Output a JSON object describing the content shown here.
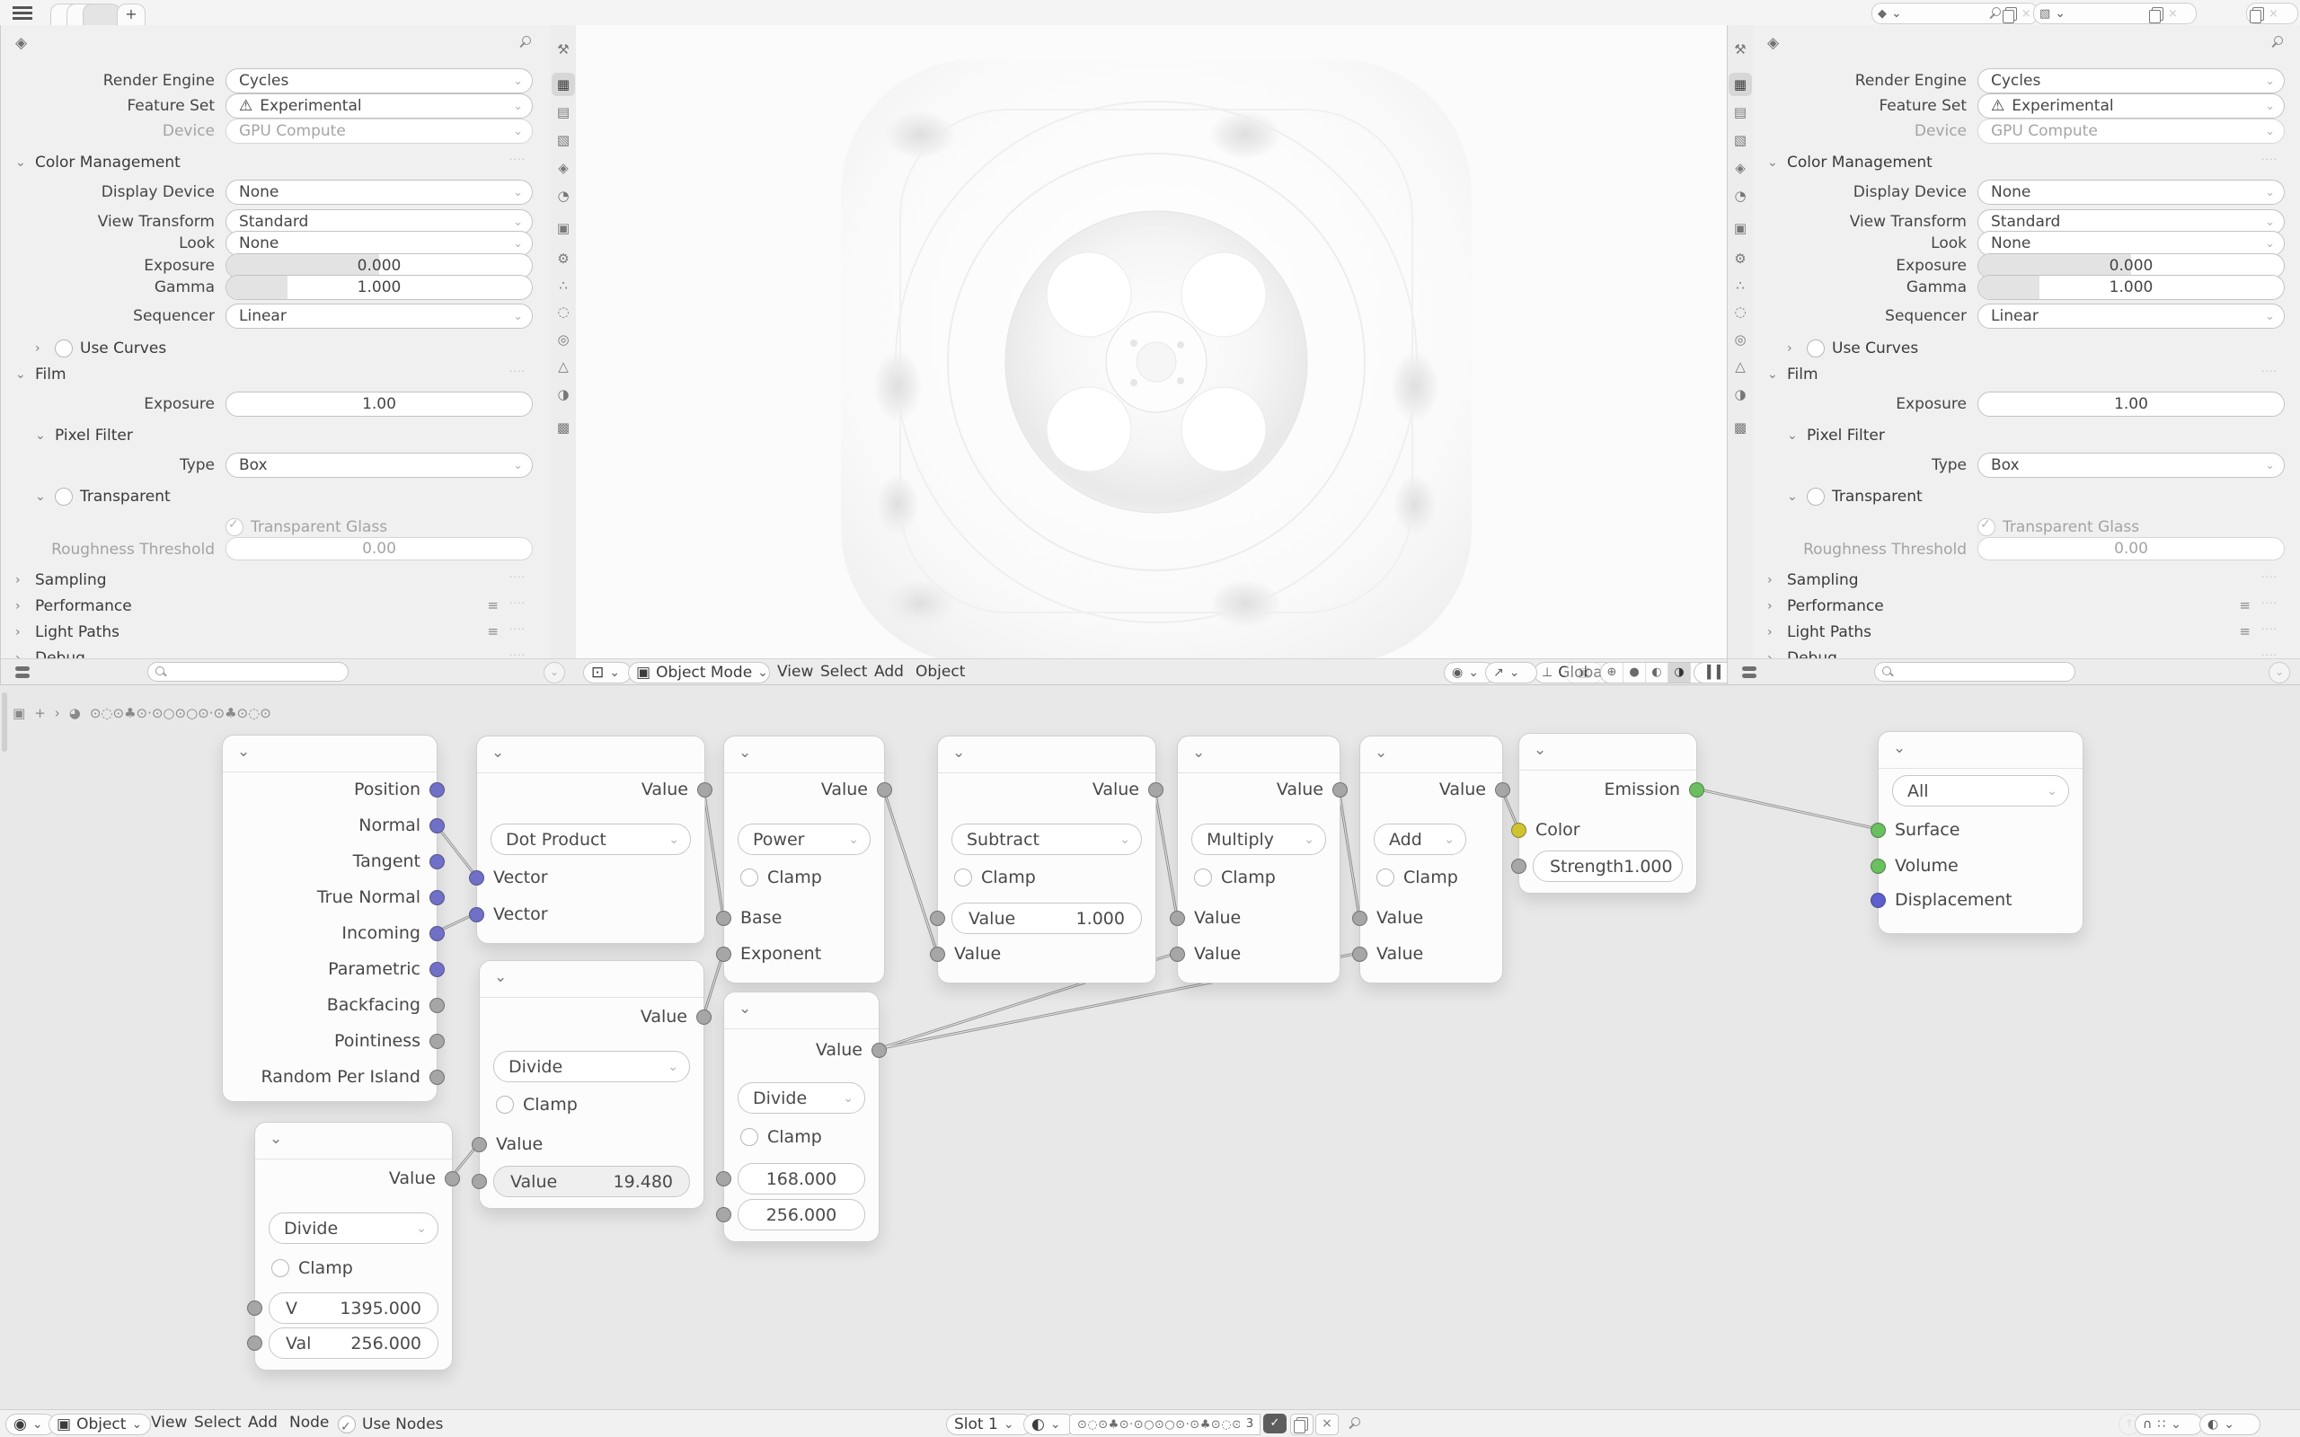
{
  "glyphs": {
    "chevron_down": "⌄",
    "arrow_right": "›",
    "check": "✓",
    "warning": "⚠",
    "plus": "+",
    "close": "×",
    "snap_dots": "∷",
    "burger_list": "≡",
    "drag_dots": "····",
    "magnet": "∩",
    "up_arrow": "↑",
    "scene_icon": "◆",
    "view_layer_icon": "▧",
    "props_breadcrumb_icon": "◈",
    "editor_viewport_icon": "⊡",
    "editor_shader_icon": "◉",
    "object_icon": "▣",
    "material_sphere_icon": "◐",
    "material_preview_icon": "◕",
    "pan_icon": "+",
    "eye_icon": "◉",
    "gizmo_icon": "↗",
    "overlays_icon": "◎",
    "xray_icon": "▣",
    "wireframe_icon": "⊕",
    "solid_icon": "●",
    "material_shading_icon": "◐",
    "rendered_icon": "◑",
    "pause_icon": "▍▍",
    "orientation_icon": "⊥",
    "falloff_dot_icon": "◦",
    "falloff_curve_icon": "⌒"
  },
  "props": {
    "tab_glyphs": [
      "⚒",
      "▦",
      "▤",
      "▧",
      "◈",
      "◔",
      "▣",
      "⚙",
      "∴",
      "◌",
      "◎",
      "△",
      "◑",
      "▩"
    ],
    "rows": {
      "render_engine": {
        "label": "Render Engine",
        "value": "Cycles"
      },
      "feature_set": {
        "label": "Feature Set",
        "value": "Experimental"
      },
      "device": {
        "label": "Device",
        "value": "GPU Compute"
      },
      "color_management": {
        "label": "Color Management"
      },
      "display_device": {
        "label": "Display Device",
        "value": "None"
      },
      "view_transform": {
        "label": "View Transform",
        "value": "Standard"
      },
      "look": {
        "label": "Look",
        "value": "None"
      },
      "exposure": {
        "label": "Exposure",
        "value": "0.000"
      },
      "gamma": {
        "label": "Gamma",
        "value": "1.000"
      },
      "sequencer": {
        "label": "Sequencer",
        "value": "Linear"
      },
      "use_curves": {
        "label": "Use Curves"
      },
      "film": {
        "label": "Film"
      },
      "film_exposure": {
        "label": "Exposure",
        "value": "1.00"
      },
      "pixel_filter": {
        "label": "Pixel Filter"
      },
      "type": {
        "label": "Type",
        "value": "Box"
      },
      "transparent": {
        "label": "Transparent"
      },
      "transparent_glass": {
        "label": "Transparent Glass"
      },
      "roughness_threshold": {
        "label": "Roughness Threshold",
        "value": "0.00"
      },
      "sampling": {
        "label": "Sampling"
      },
      "performance": {
        "label": "Performance"
      },
      "light_paths": {
        "label": "Light Paths"
      },
      "debug": {
        "label": "Debug"
      }
    }
  },
  "viewport": {
    "mode": "Object Mode",
    "menu_view": "View",
    "menu_select": "Select",
    "menu_add": "Add",
    "menu_object": "Object",
    "orientation": "Global"
  },
  "node_editor": {
    "breadcrumb_name": "⊙◌⊙♣⊙·⊙○⊙○⊙·⊙♣⊙◌⊙",
    "clamp_label": "Clamp",
    "nodes": {
      "geometry": {
        "outputs": [
          "Position",
          "Normal",
          "Tangent",
          "True Normal",
          "Incoming",
          "Parametric",
          "Backfacing",
          "Pointiness",
          "Random Per Island"
        ]
      },
      "vector_math": {
        "output": "Value",
        "operation": "Dot Product",
        "input1": "Vector",
        "input2": "Vector"
      },
      "math_divide_1": {
        "output": "Value",
        "operation": "Divide",
        "input": "Value",
        "field_label": "Value",
        "field_value": "19.480"
      },
      "math_power": {
        "output": "Value",
        "operation": "Power",
        "input1": "Base",
        "input2": "Exponent"
      },
      "math_divide_2": {
        "output": "Value",
        "operation": "Divide",
        "field1": "168.000",
        "field2": "256.000"
      },
      "math_subtract": {
        "output": "Value",
        "operation": "Subtract",
        "field_label": "Value",
        "field_value": "1.000",
        "input": "Value"
      },
      "math_multiply": {
        "output": "Value",
        "operation": "Multiply",
        "input1": "Value",
        "input2": "Value"
      },
      "math_add": {
        "output": "Value",
        "operation": "Add",
        "input1": "Value",
        "input2": "Value"
      },
      "emission": {
        "output": "Emission",
        "input_color": "Color",
        "strength_label": "Strength",
        "strength_value": "1.000"
      },
      "output": {
        "target": "All",
        "input1": "Surface",
        "input2": "Volume",
        "input3": "Displacement"
      },
      "math_divide_3": {
        "output": "Value",
        "operation": "Divide",
        "field1_label": "V",
        "field1": "1395.000",
        "field2_label": "Val",
        "field2": "256.000"
      }
    },
    "footer": {
      "object": "Object",
      "menu_view": "View",
      "menu_select": "Select",
      "menu_add": "Add",
      "menu_node": "Node",
      "use_nodes": "Use Nodes",
      "slot": "Slot 1",
      "material_name": "⊙◌⊙♣⊙·⊙○⊙○⊙·⊙♣⊙◌⊙",
      "users": "3"
    }
  }
}
